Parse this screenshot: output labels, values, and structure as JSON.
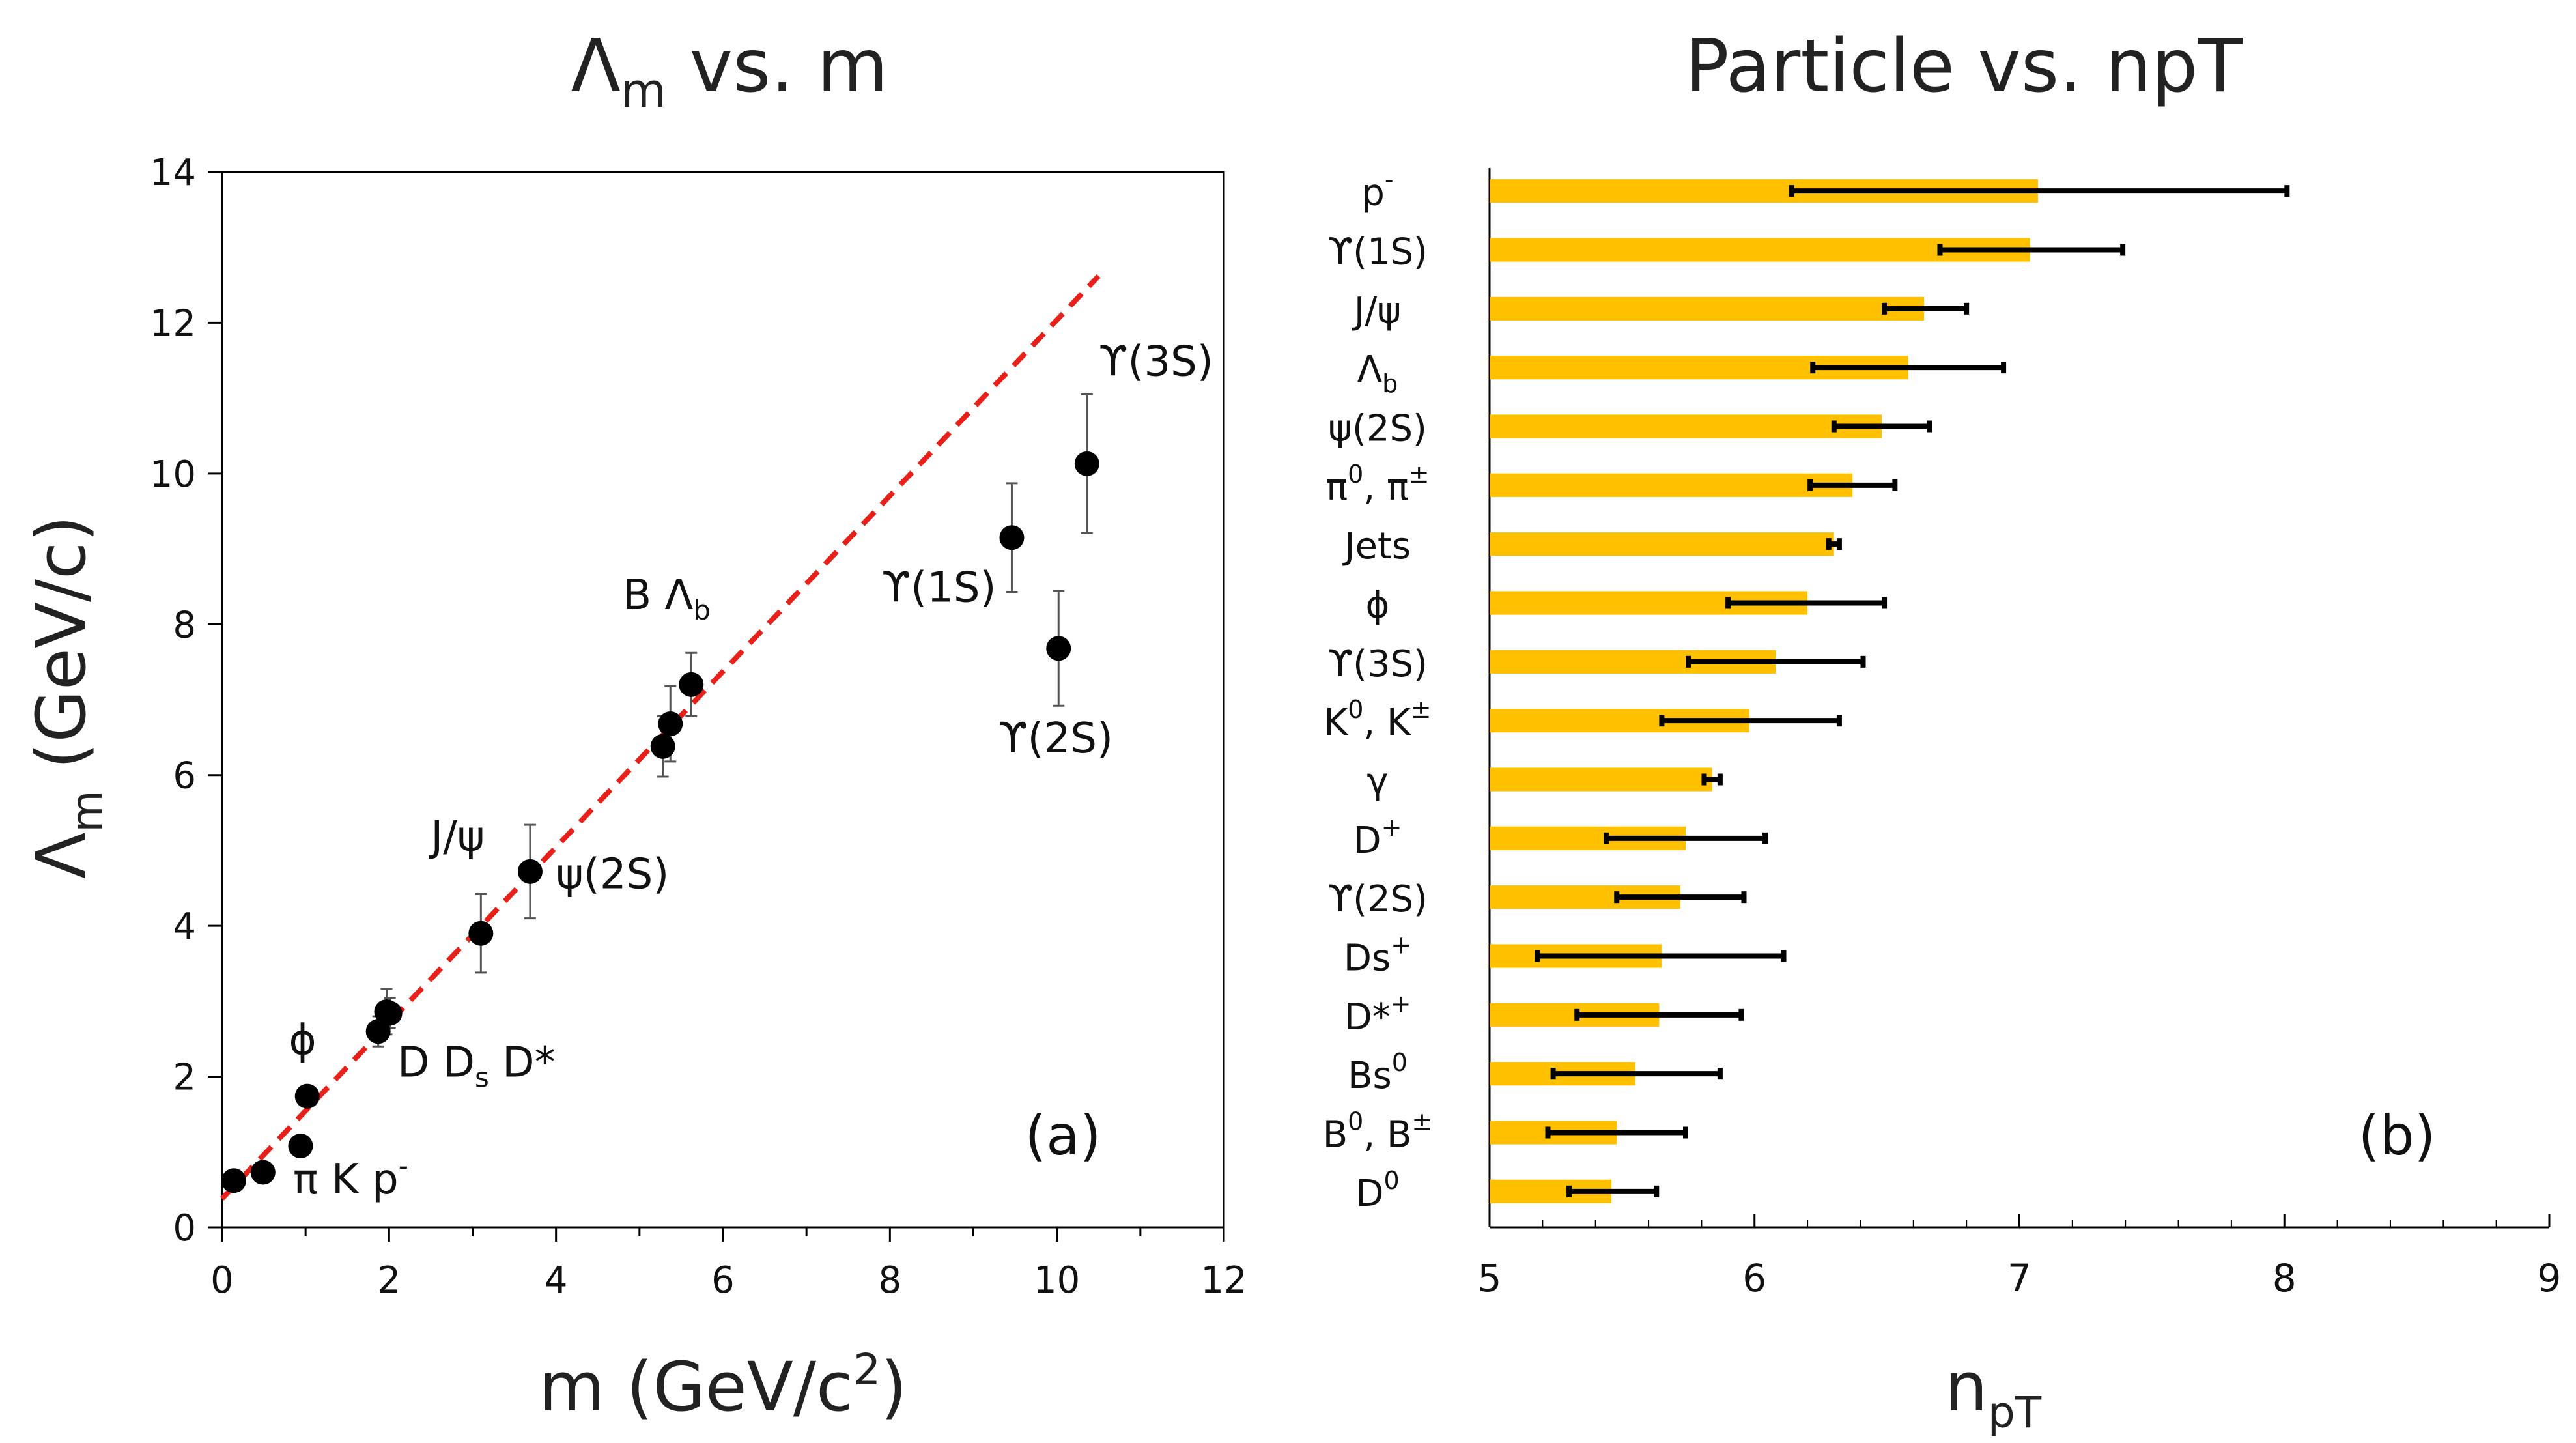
{
  "chart_data": [
    {
      "type": "scatter",
      "title": "Λm vs. m",
      "title_main": "Λ",
      "title_sub": "m",
      "title_rest": " vs. m",
      "xlabel": "m (GeV/c²)",
      "xlabel_main": "m (GeV/c",
      "xlabel_sup": "2",
      "xlabel_close": ")",
      "ylabel": "Λm (GeV/c)",
      "ylabel_main": "Λ",
      "ylabel_sub": "m",
      "ylabel_rest": " (GeV/c)",
      "xlim": [
        0,
        12
      ],
      "ylim": [
        0,
        14
      ],
      "xticks": [
        "0",
        "2",
        "4",
        "6",
        "8",
        "10",
        "12"
      ],
      "yticks": [
        "0",
        "2",
        "4",
        "6",
        "8",
        "10",
        "12",
        "14"
      ],
      "panel_label": "(a)",
      "points": [
        {
          "x": 0.14,
          "y": 0.62,
          "err": 0.08
        },
        {
          "x": 0.49,
          "y": 0.73,
          "err": 0.06
        },
        {
          "x": 0.94,
          "y": 1.08,
          "err": 0.08
        },
        {
          "x": 1.02,
          "y": 1.74,
          "err": 0.1
        },
        {
          "x": 1.87,
          "y": 2.6,
          "err": 0.2
        },
        {
          "x": 1.97,
          "y": 2.86,
          "err": 0.3
        },
        {
          "x": 2.01,
          "y": 2.84,
          "err": 0.2
        },
        {
          "x": 3.1,
          "y": 3.9,
          "err": 0.52
        },
        {
          "x": 3.69,
          "y": 4.72,
          "err": 0.62
        },
        {
          "x": 5.28,
          "y": 6.38,
          "err": 0.4
        },
        {
          "x": 5.37,
          "y": 6.68,
          "err": 0.5
        },
        {
          "x": 5.62,
          "y": 7.2,
          "err": 0.42
        },
        {
          "x": 9.46,
          "y": 9.15,
          "err": 0.72
        },
        {
          "x": 10.02,
          "y": 7.68,
          "err": 0.76
        },
        {
          "x": 10.36,
          "y": 10.13,
          "err": 0.92
        }
      ],
      "fit_line": {
        "x": [
          0,
          10.5
        ],
        "y": [
          0.38,
          12.62
        ],
        "color": "#e8201a"
      },
      "annotations": [
        {
          "text": "π K p",
          "sup": "-",
          "x": 0.85,
          "y": 0.45
        },
        {
          "text": "ϕ",
          "x": 0.8,
          "y": 2.3
        },
        {
          "text": "D D",
          "sub": "s",
          "post": " D*",
          "x": 2.1,
          "y": 2.0
        },
        {
          "text": "J/ψ",
          "x": 2.5,
          "y": 5.0
        },
        {
          "text": "ψ(2S)",
          "x": 4.0,
          "y": 4.5
        },
        {
          "text": "B Λ",
          "sub": "b",
          "x": 4.8,
          "y": 8.2
        },
        {
          "text": "ϒ(1S)",
          "x": 7.9,
          "y": 8.3
        },
        {
          "text": "ϒ(2S)",
          "x": 9.3,
          "y": 6.3
        },
        {
          "text": "ϒ(3S)",
          "x": 10.5,
          "y": 11.3
        }
      ]
    },
    {
      "type": "bar",
      "orientation": "horizontal",
      "title": "Particle vs. npT",
      "xlabel": "npT",
      "xlabel_main": "n",
      "xlabel_sub": "pT",
      "xlim": [
        5,
        9
      ],
      "xticks": [
        "5",
        "6",
        "7",
        "8",
        "9"
      ],
      "bar_color": "#ffc000",
      "panel_label": "(b)",
      "categories": [
        {
          "label": "p",
          "sup": "-",
          "value": 7.07,
          "lo": 6.14,
          "hi": 8.01
        },
        {
          "label": "ϒ(1S)",
          "value": 7.04,
          "lo": 6.7,
          "hi": 7.39
        },
        {
          "label": "J/ψ",
          "value": 6.64,
          "lo": 6.49,
          "hi": 6.8
        },
        {
          "label": "Λ",
          "sub": "b",
          "value": 6.58,
          "lo": 6.22,
          "hi": 6.94
        },
        {
          "label": "ψ(2S)",
          "value": 6.48,
          "lo": 6.3,
          "hi": 6.66
        },
        {
          "label": "π",
          "sup": "0",
          "label2": ", π",
          "sup2": "±",
          "value": 6.37,
          "lo": 6.21,
          "hi": 6.53
        },
        {
          "label": "Jets",
          "value": 6.3,
          "lo": 6.28,
          "hi": 6.32
        },
        {
          "label": "ϕ",
          "value": 6.2,
          "lo": 5.9,
          "hi": 6.49
        },
        {
          "label": "ϒ(3S)",
          "value": 6.08,
          "lo": 5.75,
          "hi": 6.41
        },
        {
          "label": "K",
          "sup": "0",
          "label2": ", K",
          "sup2": "±",
          "value": 5.98,
          "lo": 5.65,
          "hi": 6.32
        },
        {
          "label": "γ",
          "value": 5.84,
          "lo": 5.81,
          "hi": 5.87
        },
        {
          "label": "D",
          "sup": "+",
          "value": 5.74,
          "lo": 5.44,
          "hi": 6.04
        },
        {
          "label": "ϒ(2S)",
          "value": 5.72,
          "lo": 5.48,
          "hi": 5.96
        },
        {
          "label": "Ds",
          "sup": "+",
          "value": 5.65,
          "lo": 5.18,
          "hi": 6.11
        },
        {
          "label": "D*",
          "sup": "+",
          "value": 5.64,
          "lo": 5.33,
          "hi": 5.95
        },
        {
          "label": "Bs",
          "sup": "0",
          "value": 5.55,
          "lo": 5.24,
          "hi": 5.87
        },
        {
          "label": "B",
          "sup": "0",
          "label2": ", B",
          "sup2": "±",
          "value": 5.48,
          "lo": 5.22,
          "hi": 5.74
        },
        {
          "label": "D",
          "sup": "0",
          "value": 5.46,
          "lo": 5.3,
          "hi": 5.63
        }
      ]
    }
  ]
}
